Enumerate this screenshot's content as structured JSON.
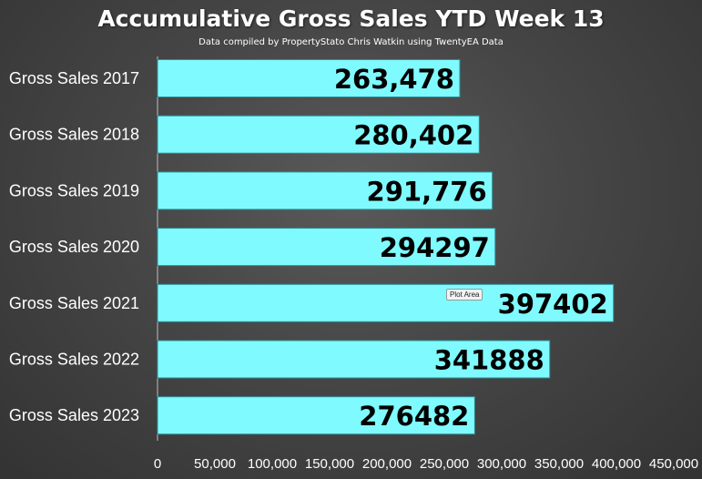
{
  "chart_data": {
    "type": "bar",
    "orientation": "horizontal",
    "title": "Accumulative Gross Sales YTD Week 13",
    "subtitle": "Data compiled by PropertyStato Chris Watkin using TwentyEA Data",
    "categories": [
      "Gross Sales 2017",
      "Gross Sales 2018",
      "Gross Sales 2019",
      "Gross Sales 2020",
      "Gross Sales 2021",
      "Gross Sales 2022",
      "Gross Sales 2023"
    ],
    "values": [
      263478,
      280402,
      291776,
      294297,
      397402,
      341888,
      276482
    ],
    "data_labels": [
      "263,478",
      "280,402",
      "291,776",
      "294297",
      "397402",
      "341888",
      "276482"
    ],
    "xlim": [
      0,
      450000
    ],
    "x_ticks": [
      "0",
      "50,000",
      "100,000",
      "150,000",
      "200,000",
      "250,000",
      "300,000",
      "350,000",
      "400,000",
      "450,000"
    ],
    "xlabel": "",
    "ylabel": "",
    "grid": false,
    "legend": "none",
    "bar_color": "#7ffbff",
    "bar_edge_color": "#2e8f96",
    "text_color": "#ffffff"
  },
  "tooltip": "Plot Area"
}
